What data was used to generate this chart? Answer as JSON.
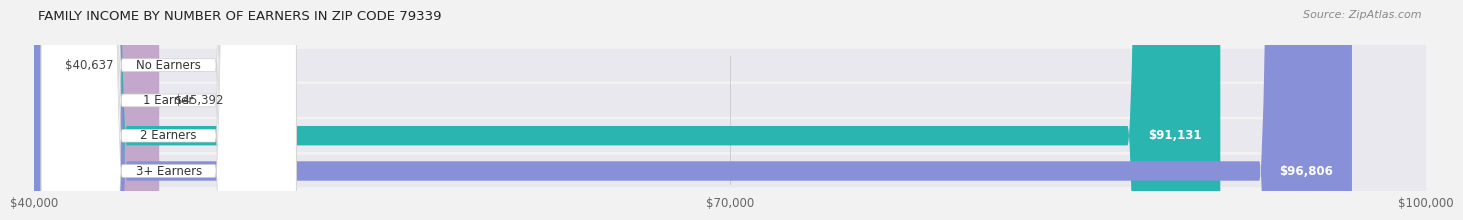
{
  "title": "FAMILY INCOME BY NUMBER OF EARNERS IN ZIP CODE 79339",
  "source": "Source: ZipAtlas.com",
  "categories": [
    "No Earners",
    "1 Earner",
    "2 Earners",
    "3+ Earners"
  ],
  "values": [
    40637,
    45392,
    91131,
    96806
  ],
  "bar_colors": [
    "#aac4e0",
    "#c4a8cc",
    "#2ab5b0",
    "#8890d8"
  ],
  "x_min": 40000,
  "x_max": 100000,
  "x_ticks": [
    40000,
    70000,
    100000
  ],
  "x_tick_labels": [
    "$40,000",
    "$70,000",
    "$100,000"
  ],
  "bar_height": 0.55,
  "background_color": "#f2f2f2",
  "value_label_colors": [
    "#555555",
    "#555555",
    "#ffffff",
    "#ffffff"
  ]
}
